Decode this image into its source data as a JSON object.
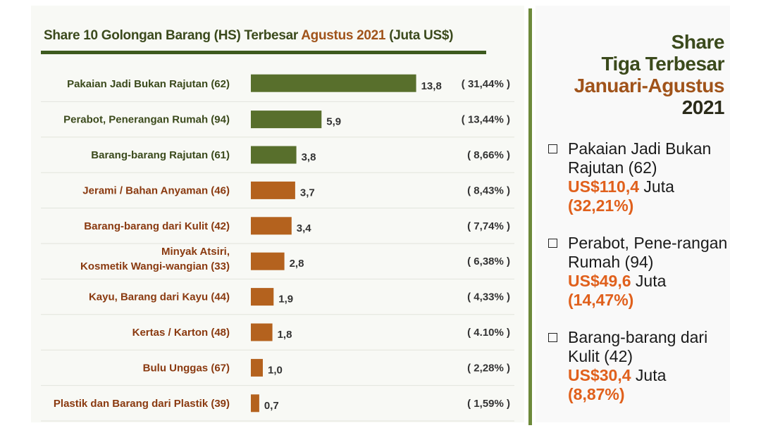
{
  "title": {
    "part1": "Share 10 Golongan Barang (HS) Terbesar",
    "part2": "Agustus 2021",
    "part3": "(Juta US$)"
  },
  "colors": {
    "green": "#586f2c",
    "brown": "#b4621e",
    "label_green": "#3b4a1c",
    "label_brown": "#8a3a10",
    "accent": "#e0601c"
  },
  "chart_data": {
    "type": "bar",
    "orientation": "horizontal",
    "title": "Share 10 Golongan Barang (HS) Terbesar Agustus 2021 (Juta US$)",
    "categories": [
      "Pakaian Jadi Bukan Rajutan (62)",
      "Perabot, Penerangan Rumah (94)",
      "Barang-barang Rajutan (61)",
      "Jerami / Bahan Anyaman (46)",
      "Barang-barang dari Kulit (42)",
      "Minyak Atsiri,\nKosmetik Wangi-wangian (33)",
      "Kayu, Barang dari Kayu (44)",
      "Kertas / Karton (48)",
      "Bulu Unggas (67)",
      "Plastik dan Barang dari Plastik (39)"
    ],
    "values": [
      13.8,
      5.9,
      3.8,
      3.7,
      3.4,
      2.8,
      1.9,
      1.8,
      1.0,
      0.7
    ],
    "value_labels": [
      "13,8",
      "5,9",
      "3,8",
      "3,7",
      "3,4",
      "2,8",
      "1,9",
      "1,8",
      "1,0",
      "0,7"
    ],
    "shares": [
      "( 31,44% )",
      "( 13,44% )",
      "( 8,66% )",
      "( 8,43% )",
      "( 7,74% )",
      "( 6,38% )",
      "( 4,33% )",
      "( 4.10% )",
      "( 2,28% )",
      "( 1,59% )"
    ],
    "bar_colors": [
      "green",
      "green",
      "green",
      "brown",
      "brown",
      "brown",
      "brown",
      "brown",
      "brown",
      "brown"
    ]
  },
  "right_panel": {
    "heading": [
      "Share",
      "Tiga Terbesar",
      "Januari-Agustus",
      "2021"
    ],
    "items": [
      {
        "text": "Pakaian Jadi Bukan Rajutan (62)",
        "value": "US$110,4",
        "unit": "Juta",
        "pct": "(32,21%)"
      },
      {
        "text": "Perabot, Pene-rangan Rumah (94)",
        "value": "US$49,6",
        "unit": "Juta",
        "pct": "(14,47%)"
      },
      {
        "text": "Barang-barang dari  Kulit (42)",
        "value": "US$30,4",
        "unit": "Juta",
        "pct": "(8,87%)"
      }
    ]
  }
}
